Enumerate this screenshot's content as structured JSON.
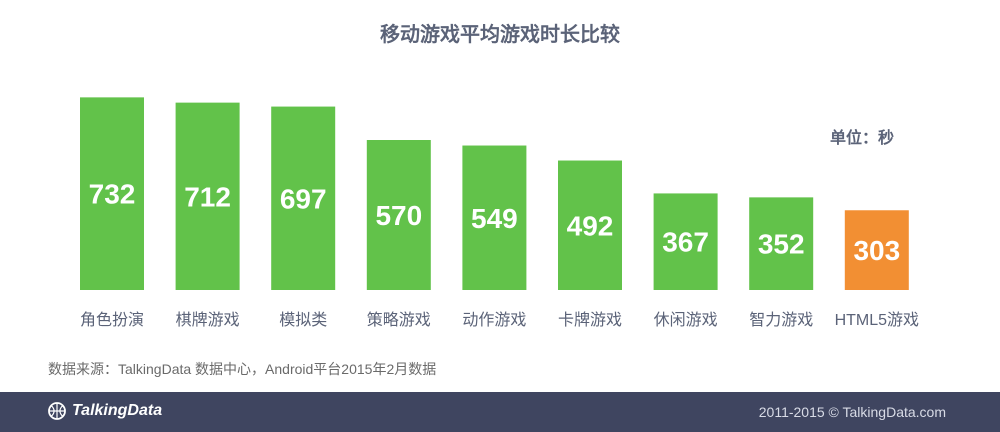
{
  "chart_data": {
    "type": "bar",
    "title": "移动游戏平均游戏时长比较",
    "unit_label": "单位：秒",
    "categories": [
      "角色扮演",
      "棋牌游戏",
      "模拟类",
      "策略游戏",
      "动作游戏",
      "卡牌游戏",
      "休闲游戏",
      "智力游戏",
      "HTML5游戏"
    ],
    "values": [
      732,
      712,
      697,
      570,
      549,
      492,
      367,
      352,
      303
    ],
    "bar_colors": [
      "#62c24a",
      "#62c24a",
      "#62c24a",
      "#62c24a",
      "#62c24a",
      "#62c24a",
      "#62c24a",
      "#62c24a",
      "#f28f33"
    ],
    "ylim": [
      0,
      760
    ],
    "grid": false,
    "legend": "none"
  },
  "source_note": "数据来源：TalkingData 数据中心，Android平台2015年2月数据",
  "footer": {
    "logo_text": "TalkingData",
    "logo_icon": "basketball-icon",
    "copyright": "2011-2015 © TalkingData.com",
    "background_color": "#3f4560"
  }
}
